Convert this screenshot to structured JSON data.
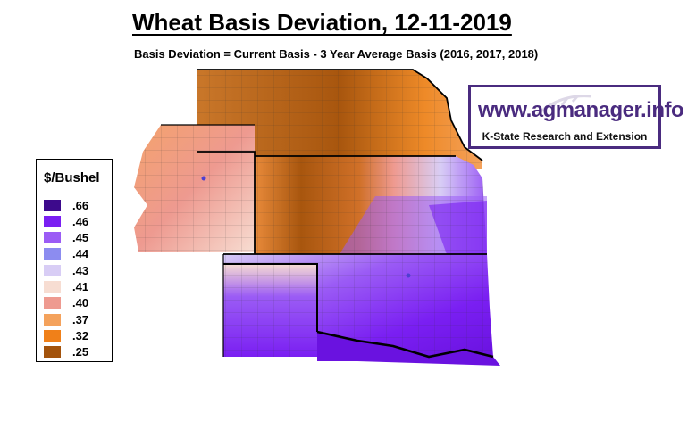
{
  "header": {
    "title": "Wheat Basis Deviation, 12-11-2019",
    "subtitle": "Basis Deviation = Current Basis - 3 Year Average Basis (2016, 2017, 2018)"
  },
  "legend": {
    "title": "$/Bushel",
    "items": [
      {
        "label": ".66",
        "color": "#3d0a8c"
      },
      {
        "label": ".46",
        "color": "#7a1ff2"
      },
      {
        "label": ".45",
        "color": "#9b5cf5"
      },
      {
        "label": ".44",
        "color": "#8c8cf0"
      },
      {
        "label": ".43",
        "color": "#d8cdf5"
      },
      {
        "label": ".41",
        "color": "#f7ddd2"
      },
      {
        "label": ".40",
        "color": "#ee9a90"
      },
      {
        "label": ".37",
        "color": "#f4a25c"
      },
      {
        "label": ".32",
        "color": "#f08019"
      },
      {
        "label": ".25",
        "color": "#a3530c"
      }
    ]
  },
  "brand": {
    "url": "www.agmanager.info",
    "org": "K-State Research and Extension"
  }
}
